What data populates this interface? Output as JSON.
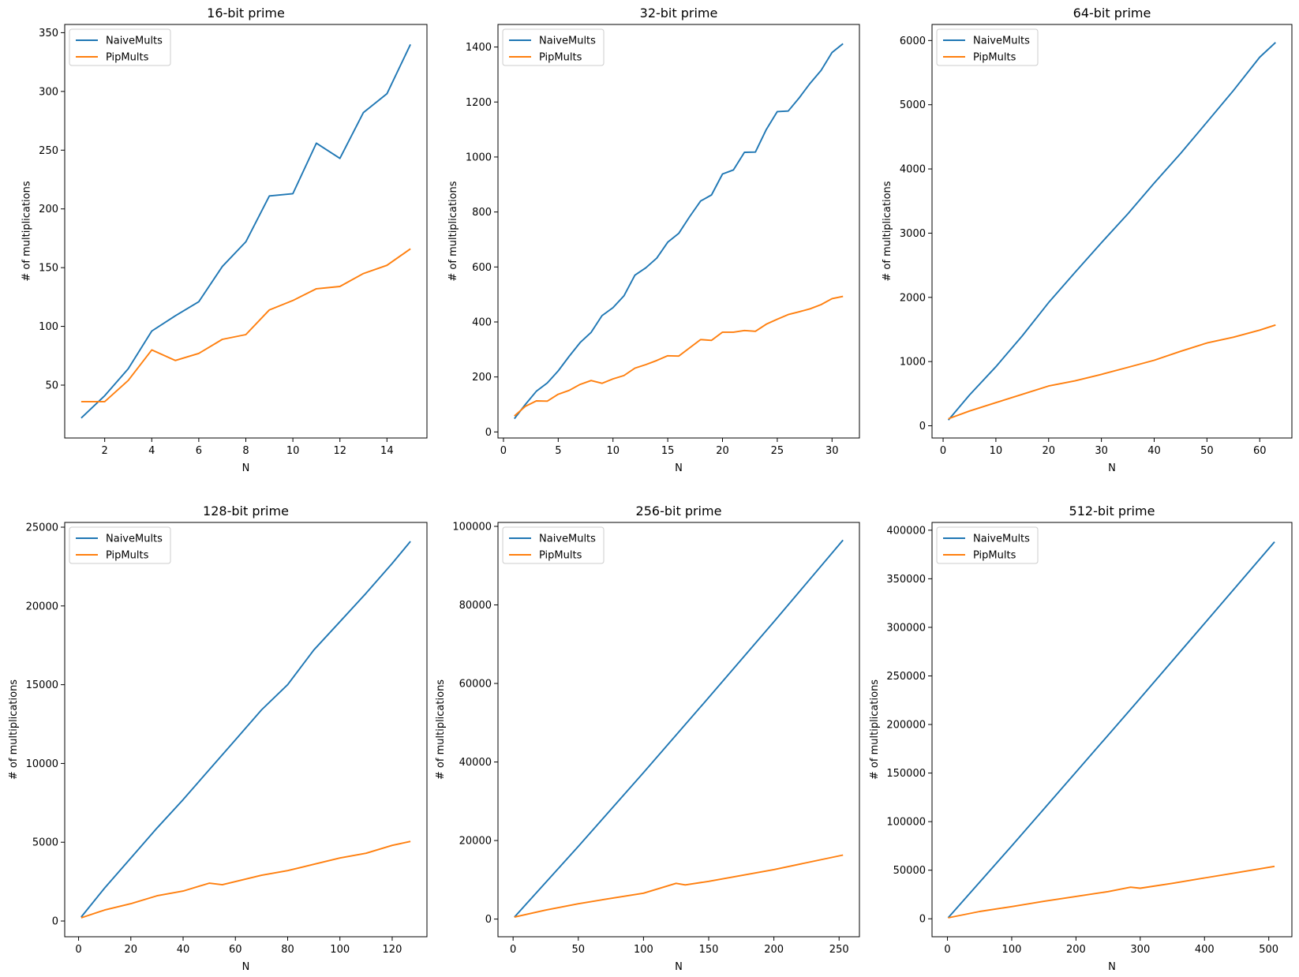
{
  "colors": {
    "naive": "#1f77b4",
    "pip": "#ff7f0e"
  },
  "chart_data": [
    {
      "type": "line",
      "title": "16-bit prime",
      "xlabel": "N",
      "ylabel": "# of multiplications",
      "xlim": [
        0.3,
        15.7
      ],
      "ylim": [
        5,
        357
      ],
      "xticks": [
        2,
        4,
        6,
        8,
        10,
        12,
        14
      ],
      "yticks": [
        50,
        100,
        150,
        200,
        250,
        300,
        350
      ],
      "legend": {
        "position": "top-left",
        "entries": [
          "NaiveMults",
          "PipMults"
        ]
      },
      "series": [
        {
          "name": "NaiveMults",
          "color": "#1f77b4",
          "x": [
            1,
            2,
            3,
            4,
            5,
            6,
            7,
            8,
            9,
            10,
            11,
            12,
            13,
            14,
            15
          ],
          "y": [
            22,
            41,
            64,
            96,
            109,
            121,
            151,
            172,
            211,
            213,
            256,
            243,
            282,
            298,
            340
          ]
        },
        {
          "name": "PipMults",
          "color": "#ff7f0e",
          "x": [
            1,
            2,
            3,
            4,
            5,
            6,
            7,
            8,
            9,
            10,
            11,
            12,
            13,
            14,
            15
          ],
          "y": [
            36,
            36,
            54,
            80,
            71,
            77,
            89,
            93,
            114,
            122,
            132,
            134,
            145,
            152,
            166
          ]
        }
      ]
    },
    {
      "type": "line",
      "title": "32-bit prime",
      "xlabel": "N",
      "ylabel": "# of multiplications",
      "xlim": [
        -0.5,
        32.5
      ],
      "ylim": [
        -22,
        1482
      ],
      "xticks": [
        0,
        5,
        10,
        15,
        20,
        25,
        30
      ],
      "yticks": [
        0,
        200,
        400,
        600,
        800,
        1000,
        1200,
        1400
      ],
      "legend": {
        "position": "top-left",
        "entries": [
          "NaiveMults",
          "PipMults"
        ]
      },
      "series": [
        {
          "name": "NaiveMults",
          "color": "#1f77b4",
          "x": [
            1,
            2,
            3,
            4,
            5,
            6,
            7,
            8,
            9,
            10,
            11,
            12,
            13,
            14,
            15,
            16,
            17,
            18,
            19,
            20,
            21,
            22,
            23,
            24,
            25,
            26,
            27,
            28,
            29,
            30,
            31
          ],
          "y": [
            48,
            100,
            148,
            178,
            222,
            275,
            325,
            362,
            423,
            452,
            495,
            570,
            597,
            632,
            690,
            722,
            783,
            840,
            862,
            938,
            953,
            1017,
            1018,
            1100,
            1165,
            1167,
            1215,
            1268,
            1315,
            1380,
            1412
          ]
        },
        {
          "name": "PipMults",
          "color": "#ff7f0e",
          "x": [
            1,
            2,
            3,
            4,
            5,
            6,
            7,
            8,
            9,
            10,
            11,
            12,
            13,
            14,
            15,
            16,
            17,
            18,
            19,
            20,
            21,
            22,
            23,
            24,
            25,
            26,
            27,
            28,
            29,
            30,
            31
          ],
          "y": [
            58,
            93,
            113,
            112,
            137,
            151,
            173,
            187,
            177,
            193,
            205,
            232,
            245,
            260,
            277,
            276,
            306,
            336,
            333,
            363,
            363,
            369,
            366,
            392,
            410,
            427,
            437,
            448,
            463,
            485,
            493
          ]
        }
      ]
    },
    {
      "type": "line",
      "title": "64-bit prime",
      "xlabel": "N",
      "ylabel": "# of multiplications",
      "xlim": [
        -2.1,
        66.1
      ],
      "ylim": [
        -190,
        6250
      ],
      "xticks": [
        0,
        10,
        20,
        30,
        40,
        50,
        60
      ],
      "yticks": [
        0,
        1000,
        2000,
        3000,
        4000,
        5000,
        6000
      ],
      "legend": {
        "position": "top-left",
        "entries": [
          "NaiveMults",
          "PipMults"
        ]
      },
      "series": [
        {
          "name": "NaiveMults",
          "color": "#1f77b4",
          "x": [
            1,
            5,
            10,
            15,
            20,
            25,
            30,
            35,
            40,
            45,
            50,
            55,
            60,
            63
          ],
          "y": [
            90,
            480,
            920,
            1400,
            1920,
            2390,
            2850,
            3300,
            3780,
            4240,
            4730,
            5220,
            5740,
            5970
          ]
        },
        {
          "name": "PipMults",
          "color": "#ff7f0e",
          "x": [
            1,
            5,
            10,
            15,
            20,
            25,
            30,
            35,
            40,
            45,
            50,
            55,
            60,
            63
          ],
          "y": [
            110,
            230,
            360,
            490,
            620,
            700,
            800,
            910,
            1020,
            1160,
            1290,
            1380,
            1490,
            1570
          ]
        }
      ]
    },
    {
      "type": "line",
      "title": "128-bit prime",
      "xlabel": "N",
      "ylabel": "# of multiplications",
      "xlim": [
        -5.3,
        133.3
      ],
      "ylim": [
        -1000,
        25300
      ],
      "xticks": [
        0,
        20,
        40,
        60,
        80,
        100,
        120
      ],
      "yticks": [
        0,
        5000,
        10000,
        15000,
        20000,
        25000
      ],
      "legend": {
        "position": "top-left",
        "entries": [
          "NaiveMults",
          "PipMults"
        ]
      },
      "series": [
        {
          "name": "NaiveMults",
          "color": "#1f77b4",
          "x": [
            1,
            10,
            20,
            30,
            40,
            50,
            60,
            70,
            80,
            90,
            100,
            110,
            120,
            127
          ],
          "y": [
            250,
            2100,
            4000,
            5900,
            7700,
            9600,
            11500,
            13400,
            15000,
            17200,
            19000,
            20800,
            22700,
            24100
          ]
        },
        {
          "name": "PipMults",
          "color": "#ff7f0e",
          "x": [
            1,
            10,
            20,
            30,
            40,
            50,
            55,
            60,
            70,
            80,
            90,
            100,
            110,
            120,
            127
          ],
          "y": [
            200,
            700,
            1100,
            1600,
            1900,
            2400,
            2300,
            2500,
            2900,
            3200,
            3600,
            4000,
            4300,
            4800,
            5050
          ]
        }
      ]
    },
    {
      "type": "line",
      "title": "256-bit prime",
      "xlabel": "N",
      "ylabel": "# of multiplications",
      "xlim": [
        -11.6,
        265.6
      ],
      "ylim": [
        -4500,
        101000
      ],
      "xticks": [
        0,
        50,
        100,
        150,
        200,
        250
      ],
      "yticks": [
        0,
        20000,
        40000,
        60000,
        80000,
        100000
      ],
      "legend": {
        "position": "top-left",
        "entries": [
          "NaiveMults",
          "PipMults"
        ]
      },
      "series": [
        {
          "name": "NaiveMults",
          "color": "#1f77b4",
          "x": [
            1,
            50,
            100,
            150,
            200,
            253
          ],
          "y": [
            500,
            18500,
            37300,
            56400,
            75700,
            96500
          ]
        },
        {
          "name": "PipMults",
          "color": "#ff7f0e",
          "x": [
            1,
            25,
            50,
            70,
            100,
            125,
            132,
            150,
            200,
            253
          ],
          "y": [
            500,
            2300,
            3900,
            5000,
            6600,
            9100,
            8700,
            9600,
            12600,
            16300
          ]
        }
      ]
    },
    {
      "type": "line",
      "title": "512-bit prime",
      "xlabel": "N",
      "ylabel": "# of multiplications",
      "xlim": [
        -24,
        536
      ],
      "ylim": [
        -18500,
        408000
      ],
      "xticks": [
        0,
        100,
        200,
        300,
        400,
        500
      ],
      "yticks": [
        0,
        50000,
        100000,
        150000,
        200000,
        250000,
        300000,
        350000,
        400000
      ],
      "legend": {
        "position": "top-left",
        "entries": [
          "NaiveMults",
          "PipMults"
        ]
      },
      "series": [
        {
          "name": "NaiveMults",
          "color": "#1f77b4",
          "x": [
            1,
            100,
            200,
            300,
            400,
            509
          ],
          "y": [
            1000,
            75000,
            151000,
            227000,
            304000,
            388000
          ]
        },
        {
          "name": "PipMults",
          "color": "#ff7f0e",
          "x": [
            1,
            50,
            100,
            150,
            200,
            250,
            285,
            300,
            350,
            400,
            450,
            509
          ],
          "y": [
            1000,
            7500,
            12500,
            18000,
            23000,
            28000,
            32500,
            31500,
            36500,
            42000,
            47500,
            54000
          ]
        }
      ]
    }
  ]
}
